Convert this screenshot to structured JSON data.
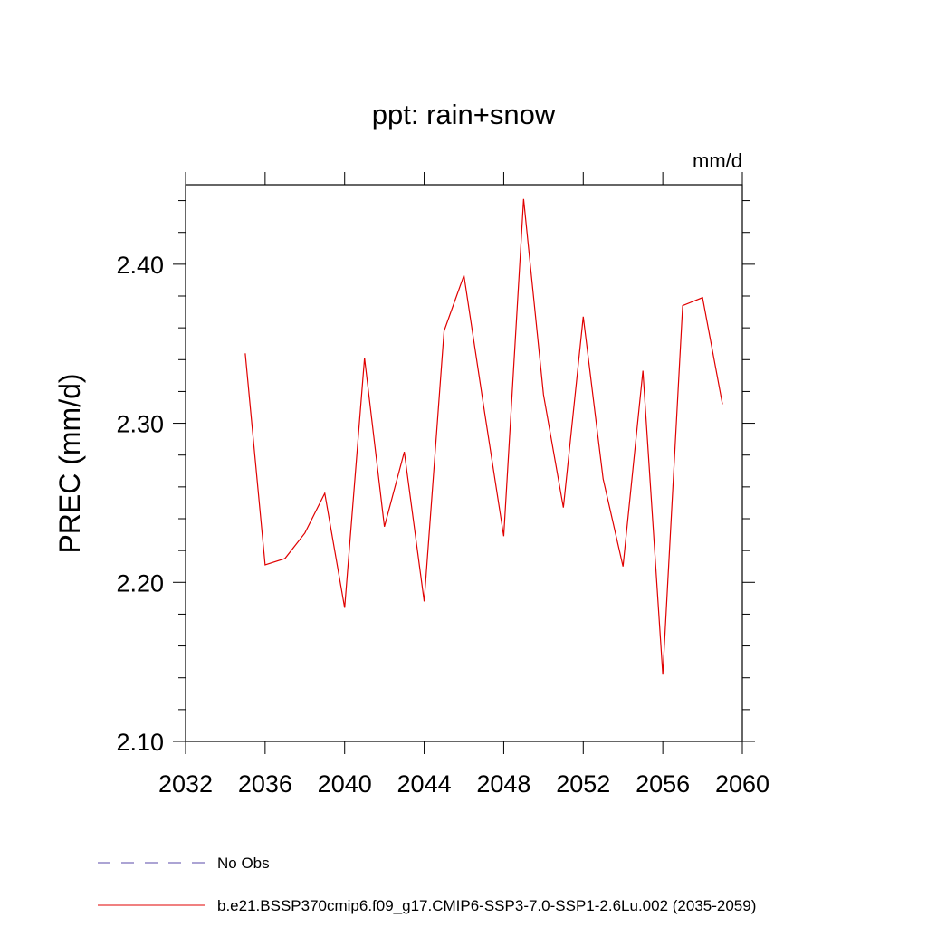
{
  "chart_data": {
    "type": "line",
    "title": "ppt: rain+snow",
    "units_label": "mm/d",
    "ylabel": "PREC  (mm/d)",
    "xlabel": "",
    "xlim": [
      2032,
      2060
    ],
    "ylim": [
      2.1,
      2.45
    ],
    "x_ticks": [
      2032,
      2036,
      2040,
      2044,
      2048,
      2052,
      2056,
      2060
    ],
    "x_tick_labels": [
      "2032",
      "2036",
      "2040",
      "2044",
      "2048",
      "2052",
      "2056",
      "2060"
    ],
    "y_ticks": [
      2.1,
      2.2,
      2.3,
      2.4
    ],
    "y_tick_labels": [
      "2.10",
      "2.20",
      "2.30",
      "2.40"
    ],
    "grid": false,
    "series": [
      {
        "name": "b.e21.BSSP370cmip6.f09_g17.CMIP6-SSP3-7.0-SSP1-2.6Lu.002 (2035-2059)",
        "color": "#e00000",
        "style": "solid",
        "x": [
          2035,
          2036,
          2037,
          2038,
          2039,
          2040,
          2041,
          2042,
          2043,
          2044,
          2045,
          2046,
          2047,
          2048,
          2049,
          2050,
          2051,
          2052,
          2053,
          2054,
          2055,
          2056,
          2057,
          2058,
          2059
        ],
        "values": [
          2.344,
          2.211,
          2.215,
          2.231,
          2.256,
          2.184,
          2.341,
          2.235,
          2.282,
          2.188,
          2.358,
          2.393,
          2.31,
          2.229,
          2.441,
          2.318,
          2.247,
          2.367,
          2.265,
          2.21,
          2.333,
          2.142,
          2.374,
          2.379,
          2.312
        ]
      }
    ],
    "legend": [
      {
        "label": "No Obs",
        "color": "#5a4aa8",
        "style": "dashed"
      },
      {
        "label": "b.e21.BSSP370cmip6.f09_g17.CMIP6-SSP3-7.0-SSP1-2.6Lu.002 (2035-2059)",
        "color": "#e00000",
        "style": "solid"
      }
    ],
    "legend_position": "bottom-left"
  }
}
